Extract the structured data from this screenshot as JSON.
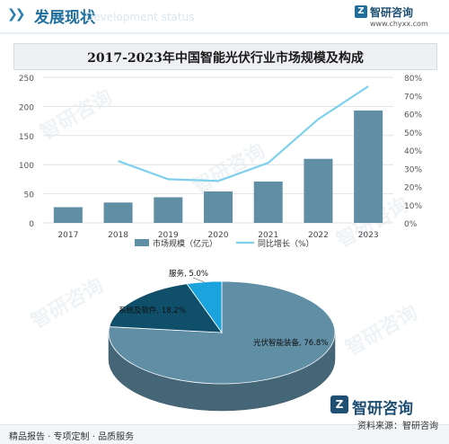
{
  "header": {
    "title": "发展现状",
    "ghost_text": "Development status",
    "brand_name": "智研咨询",
    "brand_url": "www.chyxx.com"
  },
  "watermark_text": "智研咨询",
  "chart_data": [
    {
      "type": "bar",
      "title": "2017-2023年中国智能光伏行业市场规模及构成",
      "categories": [
        "2017",
        "2018",
        "2019",
        "2020",
        "2021",
        "2022",
        "2023"
      ],
      "series": [
        {
          "name": "市场规模（亿元）",
          "type": "bar",
          "axis": "left",
          "color": "#5f8ea5",
          "values": [
            27,
            35,
            44,
            54,
            71,
            110,
            193
          ]
        },
        {
          "name": "同比增长（%）",
          "type": "line",
          "axis": "right",
          "color": "#7fd0ec",
          "values": [
            null,
            34,
            24,
            23,
            33,
            57,
            75
          ]
        }
      ],
      "y_left": {
        "ticks": [
          "0",
          "50",
          "100",
          "150",
          "200",
          "250"
        ],
        "lim": [
          0,
          250
        ]
      },
      "y_right": {
        "ticks": [
          "0%",
          "10%",
          "20%",
          "30%",
          "40%",
          "50%",
          "60%",
          "70%",
          "80%"
        ],
        "lim": [
          0,
          80
        ]
      },
      "legend_position": "bottom"
    },
    {
      "type": "pie",
      "labels": [
        "光伏智能装备, 76.8%",
        "系统及软件, 18.2%",
        "服务, 5.0%"
      ],
      "values": [
        76.8,
        18.2,
        5.0
      ],
      "colors": [
        "#5f8ea5",
        "#0f4f6a",
        "#1aa3dc"
      ]
    }
  ],
  "footer": {
    "left_text": "精品报告 · 专项定制 · 品质服务",
    "brand_name": "智研咨询",
    "source_text": "资料来源：智研咨询"
  }
}
